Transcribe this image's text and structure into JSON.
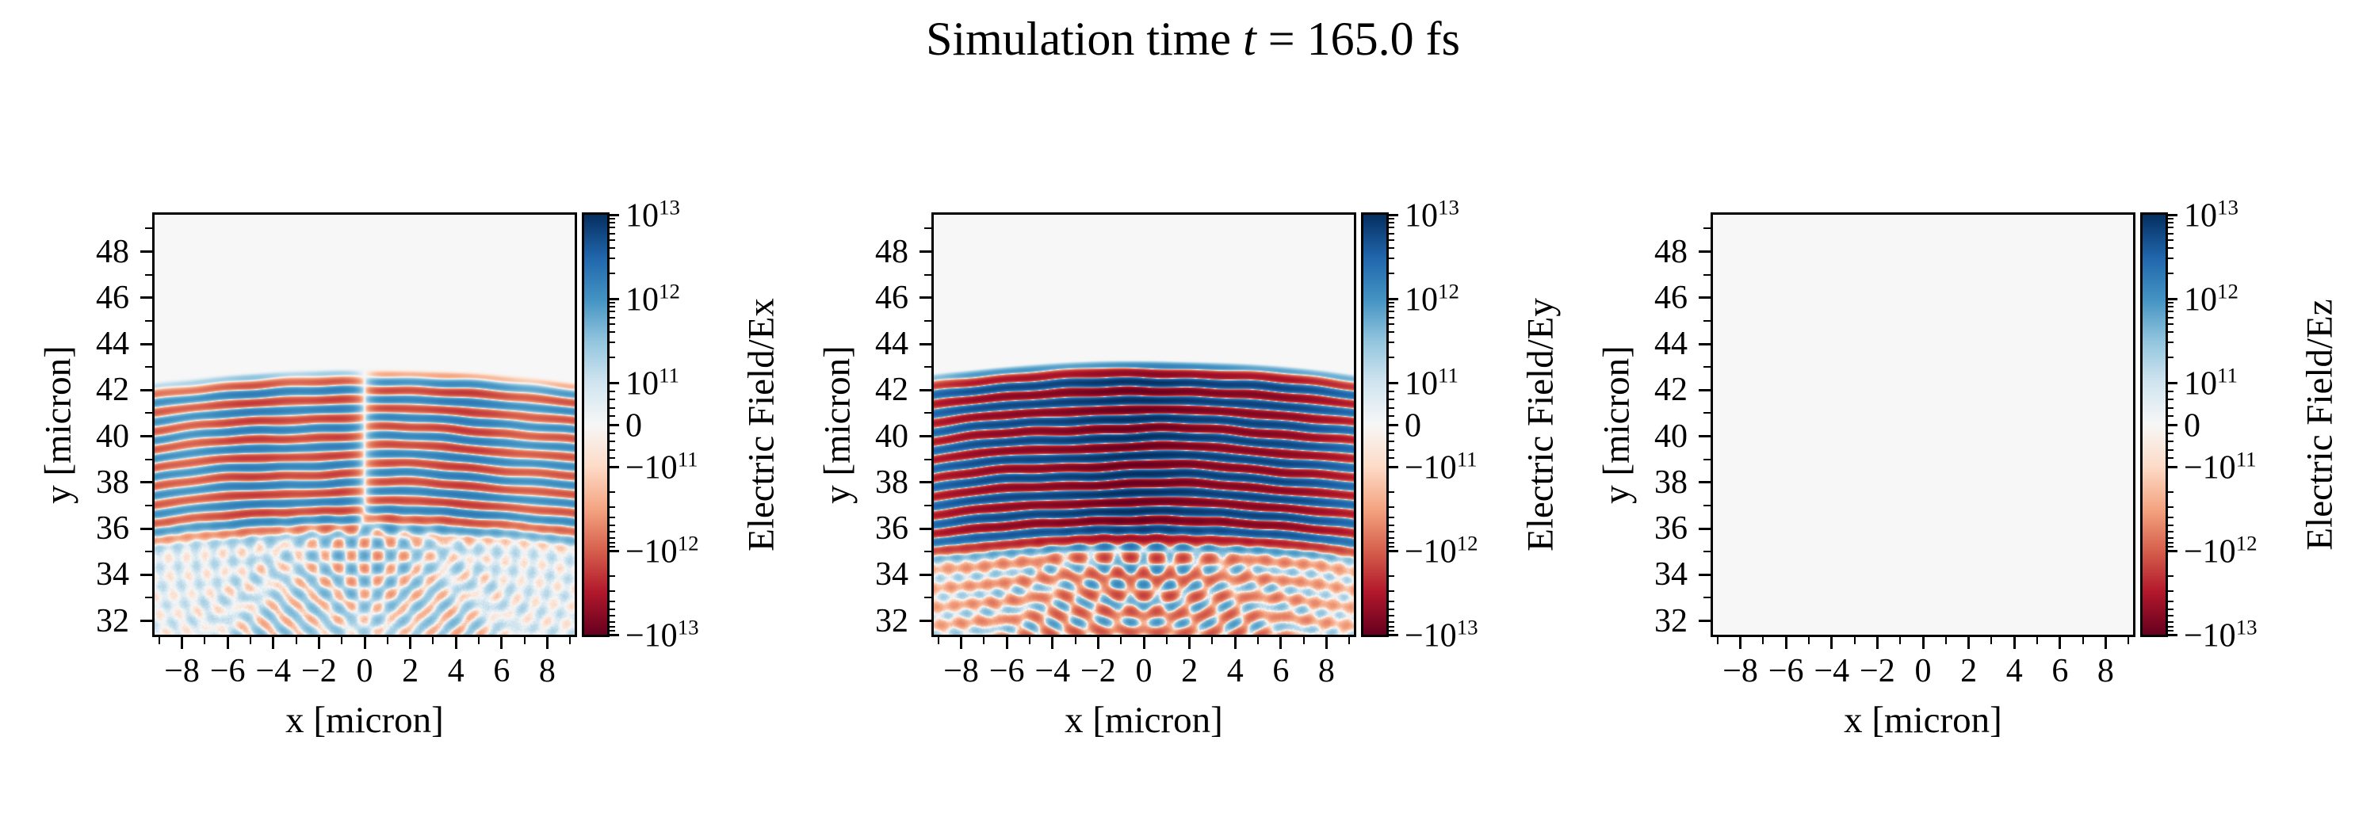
{
  "title_parts": {
    "prefix": "Simulation time ",
    "var": "t",
    "eq": " = ",
    "value": "165.0",
    "unit": " fs"
  },
  "chart_data": {
    "type": "heatmap",
    "suptitle": "Simulation time t = 165.0 fs",
    "layout_hint": "three panels side by side, each with vertical colorbar on right",
    "shared": {
      "xlabel": "x [micron]",
      "ylabel": "y [micron]",
      "xlim": [
        -9.2,
        9.2
      ],
      "ylim": [
        31.4,
        49.6
      ],
      "x_ticks": [
        -8,
        -6,
        -4,
        -2,
        0,
        2,
        4,
        6,
        8
      ],
      "x_tick_labels": [
        "−8",
        "−6",
        "−4",
        "−2",
        "0",
        "2",
        "4",
        "6",
        "8"
      ],
      "x_minor_ticks": [
        -9,
        -7,
        -5,
        -3,
        -1,
        1,
        3,
        5,
        7,
        9
      ],
      "y_ticks": [
        32,
        34,
        36,
        38,
        40,
        42,
        44,
        46,
        48
      ],
      "y_tick_labels": [
        "32",
        "34",
        "36",
        "38",
        "40",
        "42",
        "44",
        "46",
        "48"
      ],
      "y_minor_ticks": [
        33,
        35,
        37,
        39,
        41,
        43,
        45,
        47,
        49
      ],
      "grid": false,
      "background_value_color": "#f7f7f7",
      "frame_color": "#000000",
      "colormap": {
        "name": "RdBu",
        "anchors": [
          "#67001f",
          "#b2182b",
          "#d6604d",
          "#f4a582",
          "#fddbc7",
          "#f7f7f7",
          "#d1e5f0",
          "#92c5de",
          "#4393c3",
          "#2166ac",
          "#053061"
        ]
      },
      "norm": {
        "type": "symlog",
        "linthresh": 100000000000.0,
        "vmin": -10000000000000.0,
        "vmax": 10000000000000.0,
        "linear_fraction": 0.1,
        "decade_fraction": 0.2
      },
      "colorbar_ticks": [
        {
          "base": "10",
          "sup": "13",
          "value": 10000000000000.0
        },
        {
          "base": "10",
          "sup": "12",
          "value": 1000000000000.0
        },
        {
          "base": "10",
          "sup": "11",
          "value": 100000000000.0
        },
        {
          "base": "0",
          "sup": "",
          "value": 0
        },
        {
          "base": "−10",
          "sup": "11",
          "value": -100000000000.0
        },
        {
          "base": "−10",
          "sup": "12",
          "value": -1000000000000.0
        },
        {
          "base": "−10",
          "sup": "13",
          "value": -10000000000000.0
        }
      ]
    },
    "panels": [
      {
        "name": "Ex",
        "colorbar_label": "Electric Field/Ex",
        "field_model": {
          "description": "laser pulse stripes (wavelength 0.8 micron) from y=43 down to y=36, odd symmetry null seam at x=0, moderate amplitude ~2e12; crossing-beam checkerboard and pale blue fans below focus y=35",
          "wavelength": 0.8,
          "head_y": 43.0,
          "ramp": 1.0,
          "fade_top": 36.9,
          "fade_bottom": 35.4,
          "residual": 0.05,
          "curvature_R": 75,
          "stripe_amp": 2200000000000.0,
          "phase": 3.14159,
          "odd_halfwidth": 0.85,
          "x_profile_sigma": 12,
          "x_mod": 0.35,
          "x_mod_freq": 1.3,
          "focus_x": 0.0,
          "focus_y": 35.1,
          "beam_angle_deg": 44,
          "beam_halfwidth": 2.4,
          "beam_range": 8.5,
          "cross_amp": 320000000000.0,
          "cross_bias": 60000000000.0,
          "fan_amp": 110000000000.0,
          "noise": 35000000000.0
        }
      },
      {
        "name": "Ey",
        "colorbar_label": "Electric Field/Ey",
        "field_model": {
          "description": "dominant field component: saturated dark red/blue stripes (wavelength 0.8 micron) from y=43.3 down to y=36, amplitude ~1e13; red-biased interference checkerboard below focus y=35",
          "wavelength": 0.8,
          "head_y": 43.35,
          "ramp": 1.1,
          "fade_top": 36.5,
          "fade_bottom": 34.9,
          "residual": 0.06,
          "curvature_R": 75,
          "stripe_amp": 10000000000000.0,
          "phase": 0,
          "odd_halfwidth": 0,
          "x_profile_sigma": 9,
          "x_mod": 0.18,
          "x_mod_freq": 0.9,
          "focus_x": 0.0,
          "focus_y": 35.0,
          "beam_angle_deg": 44,
          "beam_halfwidth": 2.6,
          "beam_range": 9,
          "cross_amp": 650000000000.0,
          "cross_bias": -160000000000.0,
          "fan_amp": 180000000000.0,
          "noise": 50000000000.0
        }
      },
      {
        "name": "Ez",
        "colorbar_label": "Electric Field/Ez",
        "field_model": {
          "description": "field is zero everywhere; uniform near-white background",
          "uniform": 0
        }
      }
    ]
  }
}
